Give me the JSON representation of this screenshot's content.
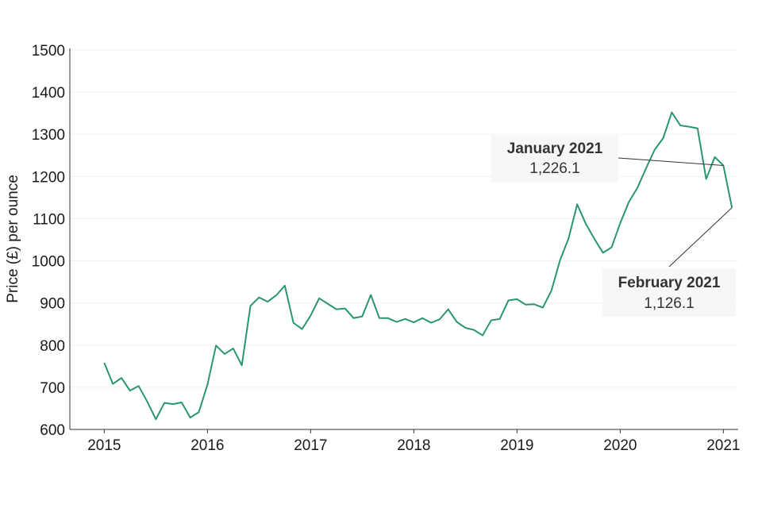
{
  "chart_data": {
    "type": "line",
    "title": "",
    "xlabel": "",
    "ylabel": "Price (£) per ounce",
    "ylim": [
      600,
      1500
    ],
    "yticks": [
      600,
      700,
      800,
      900,
      1000,
      1100,
      1200,
      1300,
      1400,
      1500
    ],
    "ytick_labels": [
      "600",
      "700",
      "800",
      "900",
      "1000",
      "1100",
      "1200",
      "1300",
      "1400",
      "1500"
    ],
    "xticks": [
      2015,
      2016,
      2017,
      2018,
      2019,
      2020,
      2021
    ],
    "xtick_labels": [
      "2015",
      "2016",
      "2017",
      "2018",
      "2019",
      "2020",
      "2021"
    ],
    "grid": true,
    "legend": "none",
    "line_color": "#2a9571",
    "series": [
      {
        "start": "2015-01",
        "frequency": "monthly",
        "values": [
          758,
          708,
          722,
          692,
          703,
          666,
          624,
          663,
          660,
          664,
          628,
          641,
          706,
          799,
          779,
          792,
          752,
          893,
          913,
          903,
          918,
          941,
          853,
          838,
          870,
          911,
          898,
          885,
          887,
          864,
          868,
          919,
          864,
          864,
          855,
          862,
          854,
          864,
          853,
          861,
          885,
          855,
          841,
          836,
          823,
          859,
          862,
          906,
          909,
          896,
          897,
          889,
          929,
          1001,
          1053,
          1134,
          1088,
          1052,
          1019,
          1032,
          1089,
          1139,
          1173,
          1219,
          1263,
          1291,
          1352,
          1321,
          1318,
          1314,
          1194,
          1246,
          1226.1,
          1126.1
        ]
      }
    ],
    "annotations": [
      {
        "title": "January 2021",
        "value": "1,226.1",
        "x": "2021-01",
        "y": 1226.1
      },
      {
        "title": "February 2021",
        "value": "1,126.1",
        "x": "2021-02",
        "y": 1126.1
      }
    ]
  }
}
